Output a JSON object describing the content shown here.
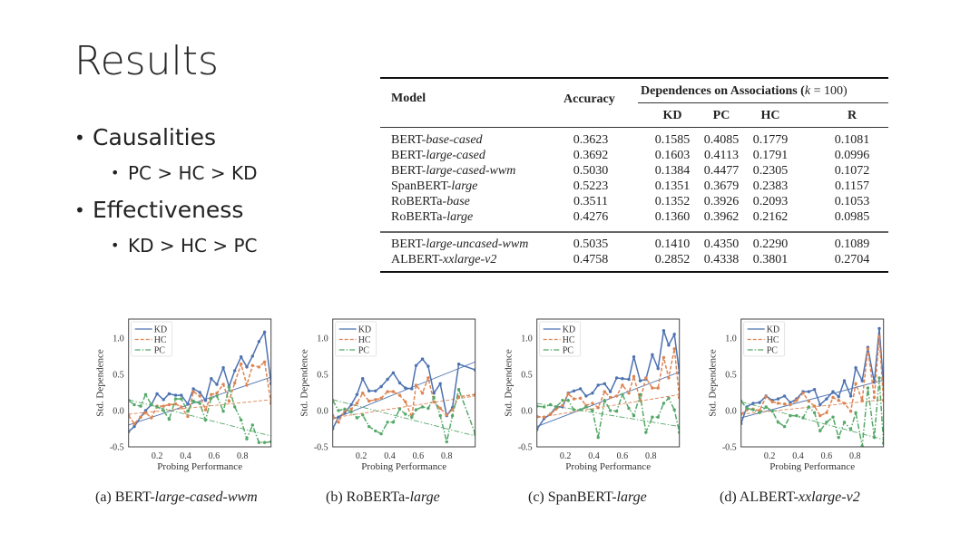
{
  "slide": {
    "title": "Results",
    "bullets": [
      {
        "label": "Causalities",
        "sub": "PC > HC > KD"
      },
      {
        "label": "Effectiveness",
        "sub": "KD > HC > PC"
      }
    ]
  },
  "table": {
    "headers": {
      "model": "Model",
      "accuracy": "Accuracy",
      "group": "Dependences on Associations (k = 100)",
      "group_prefix": "Dependences on Associations (",
      "group_k": "k",
      "group_suffix": " = 100)",
      "cols": [
        "KD",
        "PC",
        "HC",
        "R"
      ]
    },
    "rows": [
      {
        "base": "BERT-",
        "variant": "base-cased",
        "acc": "0.3623",
        "kd": "0.1585",
        "pc": "0.4085",
        "hc": "0.1779",
        "r": "0.1081"
      },
      {
        "base": "BERT-",
        "variant": "large-cased",
        "acc": "0.3692",
        "kd": "0.1603",
        "pc": "0.4113",
        "hc": "0.1791",
        "r": "0.0996"
      },
      {
        "base": "BERT-",
        "variant": "large-cased-wwm",
        "acc": "0.5030",
        "kd": "0.1384",
        "pc": "0.4477",
        "hc": "0.2305",
        "r": "0.1072"
      },
      {
        "base": "SpanBERT-",
        "variant": "large",
        "acc": "0.5223",
        "kd": "0.1351",
        "pc": "0.3679",
        "hc": "0.2383",
        "r": "0.1157"
      },
      {
        "base": "RoBERTa-",
        "variant": "base",
        "acc": "0.3511",
        "kd": "0.1352",
        "pc": "0.3926",
        "hc": "0.2093",
        "r": "0.1053"
      },
      {
        "base": "RoBERTa-",
        "variant": "large",
        "acc": "0.4276",
        "kd": "0.1360",
        "pc": "0.3962",
        "hc": "0.2162",
        "r": "0.0985"
      },
      {
        "base": "BERT-",
        "variant": "large-uncased-wwm",
        "acc": "0.5035",
        "kd": "0.1410",
        "pc": "0.4350",
        "hc": "0.2290",
        "r": "0.1089"
      },
      {
        "base": "ALBERT-",
        "variant": "xxlarge-v2",
        "acc": "0.4758",
        "kd": "0.2852",
        "pc": "0.4338",
        "hc": "0.3801",
        "r": "0.2704"
      }
    ]
  },
  "colors": {
    "KD": "#4c72b0",
    "HC": "#dd8452",
    "PC": "#55a868"
  },
  "chart_data": [
    {
      "type": "line",
      "caption_prefix": "(a) BERT-",
      "caption_italic": "large-cased-wwm",
      "xlabel": "Probing Performance",
      "ylabel": "Std. Dependence",
      "xlim": [
        0,
        1.0
      ],
      "ylim": [
        -0.5,
        1.26
      ],
      "xticks": [
        "0.2",
        "0.4",
        "0.6",
        "0.8"
      ],
      "yticks": [
        "1.0",
        "0.5",
        "0.0",
        "-0.5"
      ],
      "legend": [
        "KD",
        "HC",
        "PC"
      ],
      "legend_position": "top-left",
      "x": [
        0.0,
        0.04,
        0.085,
        0.12,
        0.16,
        0.2,
        0.245,
        0.285,
        0.33,
        0.37,
        0.415,
        0.455,
        0.5,
        0.54,
        0.58,
        0.62,
        0.665,
        0.705,
        0.745,
        0.79,
        0.83,
        0.87,
        0.915,
        0.955,
        1.0
      ],
      "series": [
        {
          "name": "KD",
          "values": [
            -0.29,
            -0.22,
            -0.09,
            0.0,
            0.08,
            0.23,
            0.15,
            0.23,
            0.21,
            0.21,
            0.09,
            0.3,
            0.25,
            0.14,
            0.44,
            0.36,
            0.59,
            0.33,
            0.55,
            0.74,
            0.6,
            0.75,
            0.95,
            1.08,
            0.37
          ],
          "trend": [
            -0.2,
            0.46
          ]
        },
        {
          "name": "HC",
          "values": [
            -0.07,
            -0.18,
            -0.09,
            -0.03,
            -0.1,
            0.06,
            0.06,
            0.08,
            0.09,
            0.05,
            -0.08,
            0.26,
            0.2,
            0.01,
            0.22,
            0.24,
            0.36,
            0.13,
            0.38,
            0.64,
            0.35,
            0.62,
            0.6,
            0.67,
            0.1
          ],
          "trend": [
            -0.05,
            0.15
          ]
        },
        {
          "name": "PC",
          "values": [
            0.14,
            0.08,
            0.06,
            0.22,
            0.08,
            0.05,
            0.0,
            -0.12,
            0.16,
            0.16,
            -0.01,
            0.13,
            0.1,
            -0.13,
            0.17,
            0.2,
            -0.01,
            0.32,
            0.05,
            -0.13,
            -0.39,
            -0.2,
            -0.44,
            -0.44,
            -0.43
          ],
          "trend": [
            0.15,
            -0.35
          ]
        }
      ]
    },
    {
      "type": "line",
      "caption_prefix": "(b) RoBERTa-",
      "caption_italic": "large",
      "xlabel": "Probing Performance",
      "ylabel": "Std. Dependence",
      "xlim": [
        0,
        1.0
      ],
      "ylim": [
        -0.5,
        1.26
      ],
      "xticks": [
        "0.2",
        "0.4",
        "0.6",
        "0.8"
      ],
      "yticks": [
        "1.0",
        "0.5",
        "0.0",
        "-0.5"
      ],
      "legend": [
        "KD",
        "HC",
        "PC"
      ],
      "legend_position": "top-left",
      "x": [
        0.0,
        0.04,
        0.085,
        0.13,
        0.17,
        0.21,
        0.255,
        0.3,
        0.34,
        0.385,
        0.425,
        0.47,
        0.51,
        0.555,
        0.585,
        0.63,
        0.67,
        0.71,
        0.755,
        0.8,
        0.84,
        0.885,
        1.0
      ],
      "series": [
        {
          "name": "KD",
          "values": [
            -0.25,
            -0.09,
            -0.03,
            0.08,
            0.22,
            0.44,
            0.27,
            0.27,
            0.33,
            0.43,
            0.52,
            0.38,
            0.31,
            0.3,
            0.62,
            0.71,
            0.61,
            0.24,
            0.37,
            -0.07,
            0.04,
            0.64,
            0.56
          ],
          "trend": [
            -0.12,
            0.67
          ]
        },
        {
          "name": "HC",
          "values": [
            -0.07,
            -0.16,
            0.0,
            0.02,
            0.1,
            0.24,
            0.13,
            0.15,
            0.17,
            0.26,
            0.26,
            0.21,
            0.12,
            -0.09,
            0.35,
            0.24,
            0.45,
            0.12,
            0.03,
            -0.06,
            0.01,
            0.19,
            0.22
          ],
          "trend": [
            -0.1,
            0.2
          ]
        },
        {
          "name": "PC",
          "values": [
            0.14,
            0.0,
            0.02,
            -0.02,
            -0.1,
            -0.06,
            -0.22,
            -0.28,
            -0.32,
            -0.16,
            -0.16,
            0.02,
            -0.05,
            -0.09,
            0.01,
            0.05,
            0.03,
            0.18,
            -0.07,
            -0.43,
            -0.07,
            0.29,
            -0.32
          ],
          "trend": [
            0.15,
            -0.35
          ]
        }
      ]
    },
    {
      "type": "line",
      "caption_prefix": "(c) SpanBERT-",
      "caption_italic": "large",
      "xlabel": "Probing Performance",
      "ylabel": "Std. Dependence",
      "xlim": [
        0,
        1.0
      ],
      "ylim": [
        -0.5,
        1.26
      ],
      "xticks": [
        "0.2",
        "0.4",
        "0.6",
        "0.8"
      ],
      "yticks": [
        "1.0",
        "0.5",
        "0.0",
        "-0.5"
      ],
      "legend": [
        "KD",
        "HC",
        "PC"
      ],
      "legend_position": "top-left",
      "x": [
        0.0,
        0.05,
        0.095,
        0.135,
        0.18,
        0.22,
        0.26,
        0.305,
        0.345,
        0.39,
        0.43,
        0.475,
        0.515,
        0.56,
        0.6,
        0.645,
        0.68,
        0.725,
        0.765,
        0.81,
        0.85,
        0.89,
        0.925,
        0.965,
        1.0
      ],
      "series": [
        {
          "name": "KD",
          "values": [
            -0.26,
            -0.11,
            -0.05,
            0.05,
            0.05,
            0.24,
            0.27,
            0.3,
            0.2,
            0.24,
            0.35,
            0.37,
            0.26,
            0.45,
            0.44,
            0.43,
            0.74,
            0.41,
            0.43,
            0.77,
            0.58,
            1.1,
            0.9,
            1.05,
            0.52
          ],
          "trend": [
            -0.22,
            0.53
          ]
        },
        {
          "name": "HC",
          "values": [
            -0.08,
            -0.09,
            -0.05,
            0.02,
            0.07,
            0.23,
            0.16,
            0.17,
            0.07,
            0.1,
            0.04,
            0.26,
            0.18,
            0.2,
            0.35,
            0.24,
            0.47,
            0.14,
            0.45,
            0.31,
            0.31,
            0.73,
            0.45,
            0.85,
            0.18
          ],
          "trend": [
            -0.1,
            0.22
          ]
        },
        {
          "name": "PC",
          "values": [
            0.06,
            0.05,
            0.08,
            0.05,
            0.14,
            0.14,
            0.01,
            0.01,
            0.05,
            0.0,
            -0.37,
            0.14,
            0.0,
            -0.01,
            0.22,
            0.03,
            -0.07,
            0.22,
            -0.3,
            -0.09,
            -0.09,
            0.1,
            0.17,
            0.01,
            -0.3
          ],
          "trend": [
            0.1,
            -0.22
          ]
        }
      ]
    },
    {
      "type": "line",
      "caption_prefix": "(d) ALBERT-",
      "caption_italic": "xxlarge-v2",
      "xlabel": "Probing Performance",
      "ylabel": "Std. Dependence",
      "xlim": [
        0,
        1.0
      ],
      "ylim": [
        -0.5,
        1.26
      ],
      "xticks": [
        "0.2",
        "0.4",
        "0.6",
        "0.8"
      ],
      "yticks": [
        "1.0",
        "0.5",
        "0.0",
        "-0.5"
      ],
      "legend": [
        "KD",
        "HC",
        "PC"
      ],
      "legend_position": "top-left",
      "x": [
        0.0,
        0.04,
        0.085,
        0.13,
        0.175,
        0.22,
        0.26,
        0.305,
        0.345,
        0.39,
        0.435,
        0.475,
        0.515,
        0.555,
        0.6,
        0.645,
        0.685,
        0.725,
        0.77,
        0.805,
        0.85,
        0.89,
        0.935,
        0.97,
        1.0
      ],
      "series": [
        {
          "name": "KD",
          "values": [
            -0.18,
            0.05,
            0.1,
            0.11,
            0.2,
            0.14,
            0.16,
            0.2,
            0.11,
            0.16,
            0.26,
            0.26,
            0.29,
            0.08,
            0.16,
            0.26,
            0.19,
            0.41,
            0.2,
            0.59,
            0.41,
            0.87,
            0.39,
            1.13,
            0.35
          ],
          "trend": [
            -0.1,
            0.42
          ]
        },
        {
          "name": "HC",
          "values": [
            -0.05,
            0.01,
            0.02,
            0.0,
            0.19,
            0.12,
            0.1,
            0.09,
            0.08,
            0.14,
            0.24,
            0.13,
            0.06,
            -0.07,
            -0.03,
            0.18,
            0.14,
            0.1,
            -0.01,
            0.37,
            0.14,
            0.85,
            0.18,
            1.02,
            0.14
          ],
          "trend": [
            -0.05,
            0.15
          ]
        },
        {
          "name": "PC",
          "values": [
            0.13,
            0.03,
            0.01,
            -0.03,
            0.05,
            -0.01,
            -0.16,
            -0.22,
            -0.07,
            -0.07,
            -0.1,
            0.05,
            -0.03,
            -0.28,
            -0.16,
            -0.09,
            -0.37,
            -0.16,
            -0.26,
            -0.03,
            -0.49,
            0.31,
            -0.37,
            0.45,
            -0.45
          ],
          "trend": [
            0.12,
            -0.4
          ]
        }
      ]
    }
  ]
}
